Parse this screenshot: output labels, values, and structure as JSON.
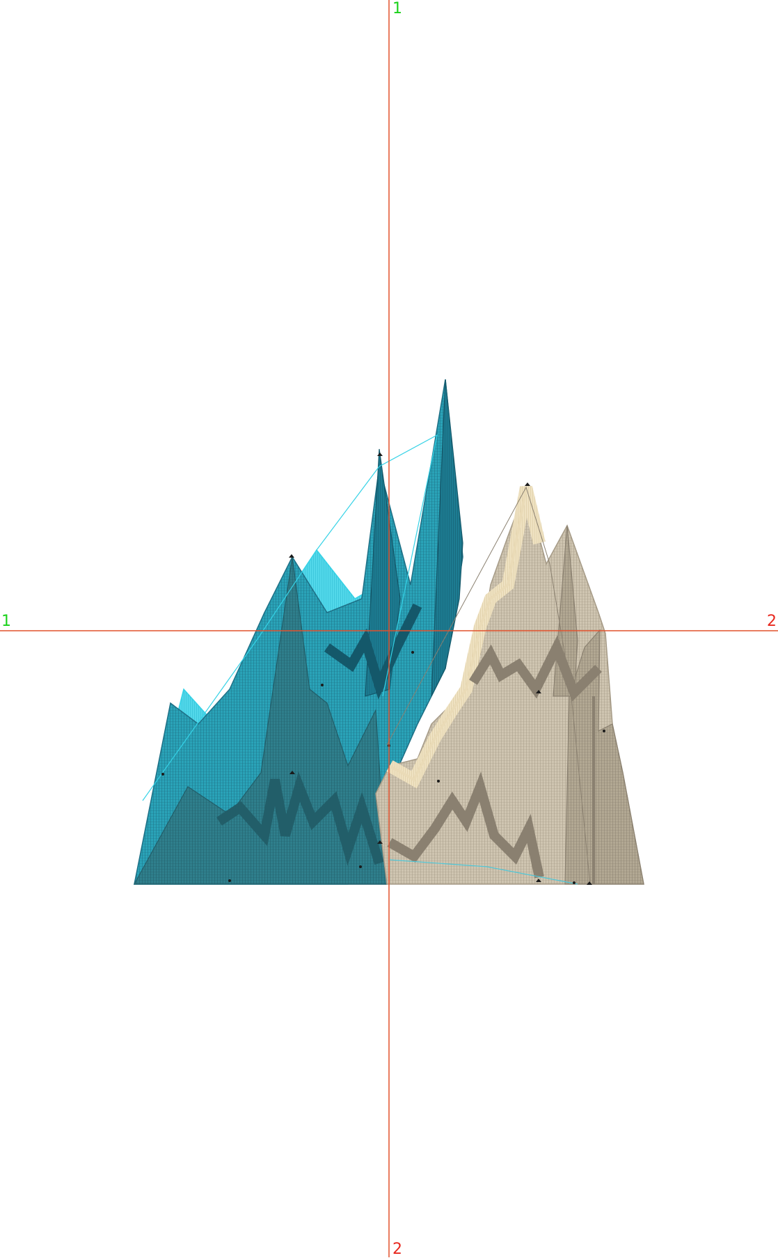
{
  "axes": {
    "vertical_top_label": "1",
    "vertical_bottom_label": "2",
    "horizontal_left_label": "1",
    "horizontal_right_label": "2"
  },
  "colors": {
    "axis_line": "#e2502c",
    "label_green": "#19d119",
    "label_red": "#e8281e",
    "cyan_light": "#35d2e6",
    "teal_mid": "#2aa3b8",
    "teal_dark": "#1d6f85",
    "teal_darker": "#155d70",
    "sand_light": "#eadbb7",
    "sand_mid": "#b9ad97",
    "sand_dark": "#8a8070",
    "marker": "#1a1a1a"
  },
  "design": {
    "type": "embroidery-stitch-preview",
    "palette_left": "teal-cyan",
    "palette_right": "sand-beige"
  }
}
